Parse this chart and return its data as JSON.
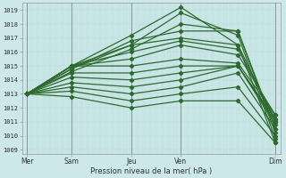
{
  "bg_color": "#cce8e8",
  "grid_color_v": "#b8d8d8",
  "grid_color_h": "#b8d8d8",
  "line_color": "#2d6a2d",
  "ylabel_values": [
    1009,
    1010,
    1011,
    1012,
    1013,
    1014,
    1015,
    1016,
    1017,
    1018,
    1019
  ],
  "ylim": [
    1008.7,
    1019.5
  ],
  "xlabel": "Pression niveau de la mer( hPa )",
  "xtick_labels": [
    "Mer",
    "Sam",
    "Jeu",
    "Ven",
    "Dim"
  ],
  "xtick_positions": [
    0.0,
    0.18,
    0.42,
    0.62,
    1.0
  ],
  "vline_positions": [
    0.0,
    0.18,
    0.42,
    0.62,
    1.0
  ],
  "lines": [
    [
      1013.0,
      1015.0,
      1017.2,
      1019.2,
      1016.5,
      1009.5
    ],
    [
      1013.0,
      1014.8,
      1016.5,
      1018.8,
      1017.2,
      1009.8
    ],
    [
      1013.0,
      1014.6,
      1016.2,
      1018.0,
      1017.5,
      1010.2
    ],
    [
      1013.0,
      1014.8,
      1016.8,
      1017.5,
      1017.5,
      1010.5
    ],
    [
      1013.0,
      1015.0,
      1016.5,
      1017.0,
      1016.5,
      1011.0
    ],
    [
      1013.0,
      1015.0,
      1016.0,
      1016.8,
      1016.2,
      1011.2
    ],
    [
      1013.0,
      1015.0,
      1015.5,
      1016.5,
      1015.8,
      1011.5
    ],
    [
      1013.0,
      1015.0,
      1015.0,
      1015.5,
      1015.2,
      1011.5
    ],
    [
      1013.0,
      1014.5,
      1014.5,
      1015.0,
      1015.0,
      1011.2
    ],
    [
      1013.0,
      1014.2,
      1014.0,
      1014.5,
      1015.0,
      1011.0
    ],
    [
      1013.0,
      1013.8,
      1013.5,
      1014.0,
      1015.0,
      1010.8
    ],
    [
      1013.0,
      1013.5,
      1013.0,
      1013.5,
      1014.5,
      1010.5
    ],
    [
      1013.0,
      1013.2,
      1012.5,
      1013.0,
      1013.5,
      1010.0
    ],
    [
      1013.0,
      1012.8,
      1012.0,
      1012.5,
      1012.5,
      1009.5
    ]
  ],
  "x_positions": [
    0.0,
    0.18,
    0.42,
    0.62,
    0.85,
    1.0
  ]
}
